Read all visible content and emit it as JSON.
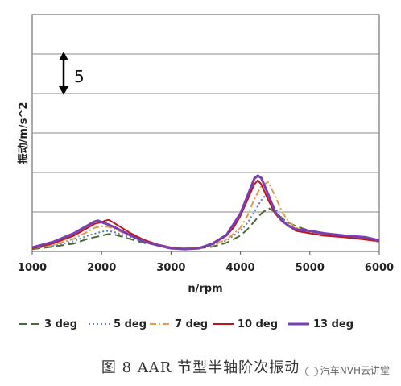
{
  "chart_data": {
    "type": "line",
    "xlabel": "n/rpm",
    "ylabel": "振动/m/s^2",
    "xlim": [
      1000,
      6000
    ],
    "ylim": [
      0,
      30
    ],
    "x_ticks": [
      1000,
      2000,
      3000,
      4000,
      5000,
      6000
    ],
    "y_gridlines": [
      0,
      5,
      10,
      15,
      20,
      25,
      30
    ],
    "y_tick_labels_shown": false,
    "grid": true,
    "legend_position": "bottom",
    "annotation": {
      "text": "5",
      "meaning": "vertical scale bar, 5 units"
    },
    "series": [
      {
        "name": "3 deg",
        "color": "#4a6b2e",
        "dash": "long-dash",
        "x": [
          1000,
          1300,
          1600,
          1800,
          2000,
          2100,
          2200,
          2400,
          2600,
          2800,
          3000,
          3200,
          3400,
          3600,
          3800,
          4000,
          4100,
          4200,
          4300,
          4400,
          4500,
          4600,
          4700,
          4800,
          5000,
          5200,
          5500,
          5800,
          6000
        ],
        "y": [
          0.3,
          0.6,
          1.0,
          1.6,
          2.0,
          2.2,
          2.1,
          1.6,
          1.1,
          0.8,
          0.5,
          0.4,
          0.4,
          0.6,
          1.1,
          2.0,
          2.8,
          3.8,
          4.8,
          5.5,
          5.0,
          4.2,
          3.6,
          3.2,
          2.6,
          2.3,
          2.0,
          1.6,
          1.3
        ]
      },
      {
        "name": "5 deg",
        "color": "#5b7fb8",
        "dash": "dotted",
        "x": [
          1000,
          1300,
          1600,
          1800,
          2000,
          2100,
          2200,
          2400,
          2600,
          2800,
          3000,
          3200,
          3400,
          3600,
          3800,
          4000,
          4100,
          4200,
          4300,
          4350,
          4400,
          4500,
          4600,
          4700,
          4800,
          5000,
          5200,
          5500,
          5800,
          6000
        ],
        "y": [
          0.4,
          0.7,
          1.3,
          2.0,
          2.5,
          2.6,
          2.4,
          1.8,
          1.2,
          0.8,
          0.5,
          0.4,
          0.5,
          0.8,
          1.4,
          2.6,
          3.6,
          5.0,
          6.5,
          7.0,
          6.8,
          5.5,
          4.2,
          3.3,
          2.8,
          2.4,
          2.2,
          2.0,
          1.6,
          1.3
        ]
      },
      {
        "name": "7 deg",
        "color": "#e39a4c",
        "dash": "dash-dot",
        "x": [
          1000,
          1300,
          1600,
          1800,
          1900,
          2000,
          2100,
          2200,
          2400,
          2600,
          2800,
          3000,
          3200,
          3400,
          3600,
          3800,
          4000,
          4100,
          4200,
          4300,
          4400,
          4500,
          4600,
          4700,
          4800,
          5000,
          5200,
          5500,
          5800,
          6000
        ],
        "y": [
          0.4,
          0.8,
          1.6,
          2.5,
          3.0,
          3.2,
          3.1,
          2.8,
          2.0,
          1.3,
          0.8,
          0.5,
          0.4,
          0.5,
          0.8,
          1.5,
          3.0,
          4.5,
          6.6,
          8.3,
          8.8,
          7.0,
          5.0,
          3.7,
          3.0,
          2.5,
          2.2,
          1.9,
          1.5,
          1.2
        ]
      },
      {
        "name": "10 deg",
        "color": "#c0141c",
        "dash": "solid",
        "x": [
          1000,
          1300,
          1600,
          1800,
          1900,
          2000,
          2050,
          2100,
          2200,
          2400,
          2600,
          2800,
          3000,
          3200,
          3400,
          3600,
          3800,
          3900,
          4000,
          4100,
          4200,
          4250,
          4300,
          4400,
          4500,
          4600,
          4700,
          4800,
          5000,
          5200,
          5500,
          5800,
          6000
        ],
        "y": [
          0.4,
          1.0,
          2.0,
          3.0,
          3.5,
          3.7,
          3.9,
          4.0,
          3.5,
          2.4,
          1.5,
          0.9,
          0.5,
          0.3,
          0.4,
          0.9,
          2.0,
          3.0,
          4.5,
          6.5,
          8.5,
          9.0,
          8.5,
          6.5,
          4.8,
          3.8,
          3.2,
          2.6,
          2.3,
          2.0,
          1.8,
          1.5,
          1.3
        ]
      },
      {
        "name": "13 deg",
        "color": "#7a3eb0",
        "dash": "solid",
        "x": [
          1000,
          1300,
          1600,
          1800,
          1900,
          1950,
          2000,
          2100,
          2200,
          2400,
          2600,
          2800,
          3000,
          3200,
          3400,
          3600,
          3800,
          4000,
          4100,
          4200,
          4250,
          4300,
          4400,
          4500,
          4600,
          4700,
          4800,
          5000,
          5200,
          5500,
          5800,
          6000
        ],
        "y": [
          0.5,
          1.2,
          2.3,
          3.3,
          3.8,
          3.9,
          3.7,
          3.4,
          3.0,
          2.1,
          1.3,
          0.8,
          0.4,
          0.3,
          0.4,
          1.0,
          2.1,
          4.8,
          7.0,
          9.2,
          9.6,
          9.3,
          7.2,
          5.0,
          3.9,
          3.2,
          2.8,
          2.6,
          2.3,
          2.0,
          1.8,
          1.4
        ]
      }
    ]
  },
  "caption": "图 8   AAR 节型半轴阶次振动",
  "watermark": "汽车NVH云讲堂"
}
